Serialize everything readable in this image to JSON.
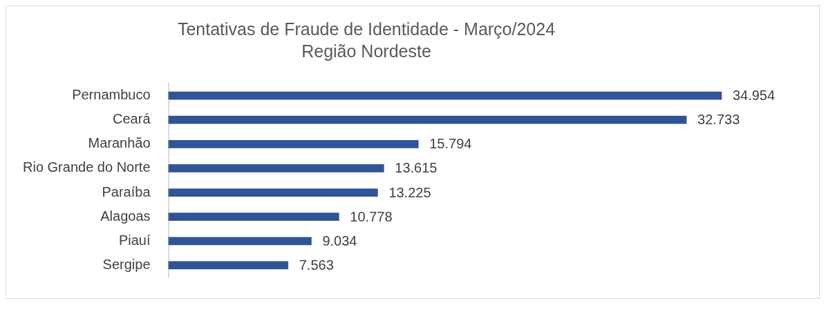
{
  "chart_data": {
    "type": "bar",
    "orientation": "horizontal",
    "title": "Tentativas de Fraude de Identidade - Março/2024",
    "subtitle": "Região Nordeste",
    "categories": [
      "Pernambuco",
      "Ceará",
      "Maranhão",
      "Rio Grande do Norte",
      "Paraíba",
      "Alagoas",
      "Piauí",
      "Sergipe"
    ],
    "values": [
      34954,
      32733,
      15794,
      13615,
      13225,
      10778,
      9034,
      7563
    ],
    "value_labels": [
      "34.954",
      "32.733",
      "15.794",
      "13.615",
      "13.225",
      "10.778",
      "9.034",
      "7.563"
    ],
    "color": "#2f5597"
  }
}
